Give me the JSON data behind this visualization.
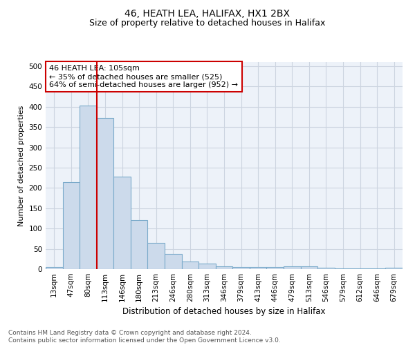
{
  "title1": "46, HEATH LEA, HALIFAX, HX1 2BX",
  "title2": "Size of property relative to detached houses in Halifax",
  "xlabel": "Distribution of detached houses by size in Halifax",
  "ylabel": "Number of detached properties",
  "categories": [
    "13sqm",
    "47sqm",
    "80sqm",
    "113sqm",
    "146sqm",
    "180sqm",
    "213sqm",
    "246sqm",
    "280sqm",
    "313sqm",
    "346sqm",
    "379sqm",
    "413sqm",
    "446sqm",
    "479sqm",
    "513sqm",
    "546sqm",
    "579sqm",
    "612sqm",
    "646sqm",
    "679sqm"
  ],
  "values": [
    5,
    215,
    403,
    372,
    228,
    121,
    65,
    38,
    18,
    13,
    6,
    5,
    5,
    5,
    6,
    6,
    4,
    1,
    1,
    1,
    4
  ],
  "bar_color": "#ccdaeb",
  "bar_edge_color": "#7aaaca",
  "vline_x": 2.5,
  "vline_color": "#cc0000",
  "annotation_text": "46 HEATH LEA: 105sqm\n← 35% of detached houses are smaller (525)\n64% of semi-detached houses are larger (952) →",
  "annotation_box_color": "white",
  "annotation_box_edge_color": "#cc0000",
  "footnote": "Contains HM Land Registry data © Crown copyright and database right 2024.\nContains public sector information licensed under the Open Government Licence v3.0.",
  "ylim": [
    0,
    510
  ],
  "yticks": [
    0,
    50,
    100,
    150,
    200,
    250,
    300,
    350,
    400,
    450,
    500
  ],
  "grid_color": "#ccd4e0",
  "bg_color": "#edf2f9",
  "figsize": [
    6.0,
    5.0
  ],
  "dpi": 100,
  "title1_fontsize": 10,
  "title2_fontsize": 9,
  "ylabel_fontsize": 8,
  "xlabel_fontsize": 8.5,
  "tick_fontsize": 7.5,
  "annot_fontsize": 8,
  "footnote_fontsize": 6.5
}
